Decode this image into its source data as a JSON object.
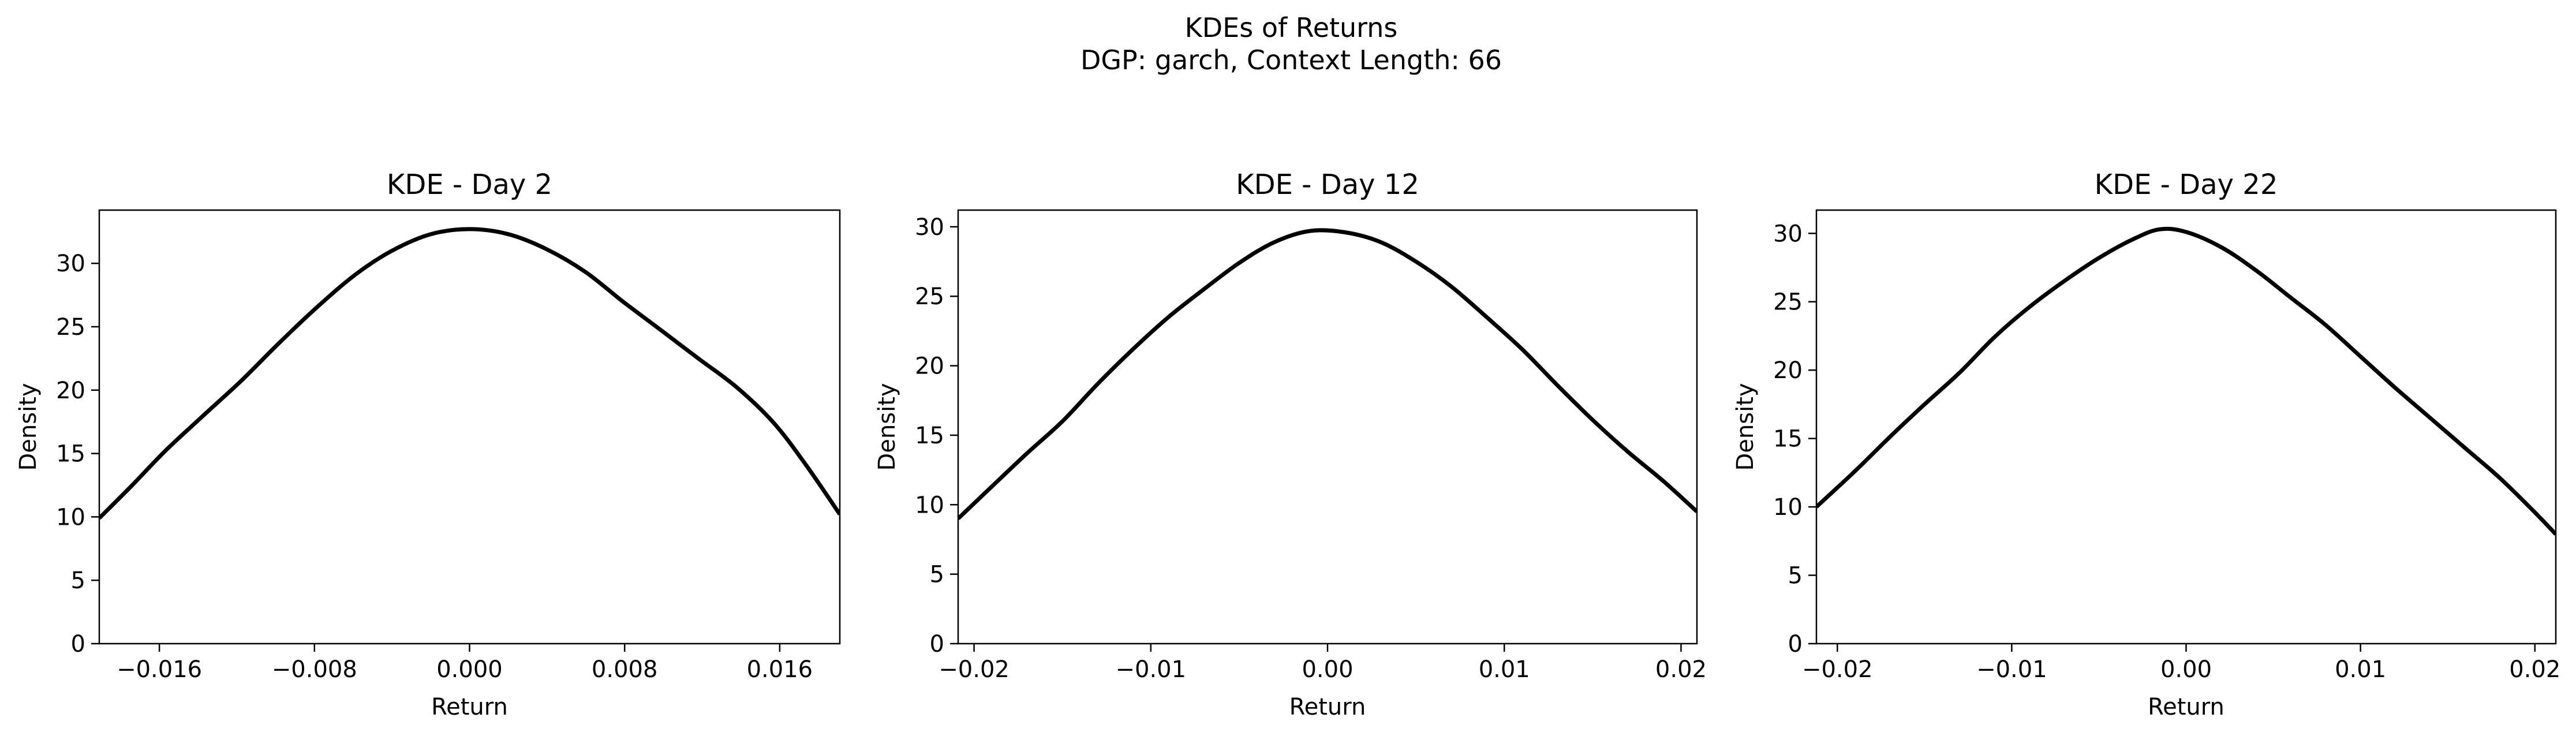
{
  "figure": {
    "title_line1": "KDEs of Returns",
    "title_line2": "DGP: garch, Context Length: 66"
  },
  "chart_data": [
    {
      "type": "line",
      "title": "KDE - Day 2",
      "xlabel": "Return",
      "ylabel": "Density",
      "xlim": [
        -0.0191,
        0.0191
      ],
      "ylim": [
        0,
        34.2
      ],
      "xticks": [
        -0.016,
        -0.008,
        0.0,
        0.008,
        0.016
      ],
      "xtick_labels": [
        "−0.016",
        "−0.008",
        "0.000",
        "0.008",
        "0.016"
      ],
      "yticks": [
        0,
        5,
        10,
        15,
        20,
        25,
        30
      ],
      "ytick_labels": [
        "0",
        "5",
        "10",
        "15",
        "20",
        "25",
        "30"
      ],
      "line_color": "#000000",
      "grid": false,
      "series": [
        {
          "x": [
            -0.0191,
            -0.0174,
            -0.0157,
            -0.0138,
            -0.0118,
            -0.0099,
            -0.0079,
            -0.0059,
            -0.004,
            -0.002,
            0.0,
            0.002,
            0.004,
            0.006,
            0.0079,
            0.0099,
            0.0118,
            0.0138,
            0.0157,
            0.0174,
            0.0191
          ],
          "y": [
            9.9,
            12.5,
            15.2,
            17.9,
            20.7,
            23.6,
            26.5,
            29.1,
            31.0,
            32.3,
            32.7,
            32.3,
            31.1,
            29.3,
            27.0,
            24.7,
            22.5,
            20.2,
            17.4,
            14.0,
            10.2
          ]
        }
      ]
    },
    {
      "type": "line",
      "title": "KDE - Day 12",
      "xlabel": "Return",
      "ylabel": "Density",
      "xlim": [
        -0.0209,
        0.0209
      ],
      "ylim": [
        0,
        31.2
      ],
      "xticks": [
        -0.02,
        -0.01,
        0.0,
        0.01,
        0.02
      ],
      "xtick_labels": [
        "−0.02",
        "−0.01",
        "0.00",
        "0.01",
        "0.02"
      ],
      "yticks": [
        0,
        5,
        10,
        15,
        20,
        25,
        30
      ],
      "ytick_labels": [
        "0",
        "5",
        "10",
        "15",
        "20",
        "25",
        "30"
      ],
      "line_color": "#000000",
      "grid": false,
      "series": [
        {
          "x": [
            -0.0209,
            -0.019,
            -0.017,
            -0.015,
            -0.013,
            -0.011,
            -0.009,
            -0.007,
            -0.005,
            -0.003,
            -0.001,
            0.001,
            0.003,
            0.005,
            0.007,
            0.009,
            0.011,
            0.013,
            0.015,
            0.017,
            0.019,
            0.0209
          ],
          "y": [
            9.0,
            11.3,
            13.7,
            16.0,
            18.7,
            21.2,
            23.5,
            25.5,
            27.4,
            28.9,
            29.7,
            29.6,
            28.9,
            27.5,
            25.7,
            23.5,
            21.2,
            18.6,
            16.1,
            13.8,
            11.7,
            9.5
          ]
        }
      ]
    },
    {
      "type": "line",
      "title": "KDE - Day 22",
      "xlabel": "Return",
      "ylabel": "Density",
      "xlim": [
        -0.0212,
        0.0212
      ],
      "ylim": [
        0,
        31.7
      ],
      "xticks": [
        -0.02,
        -0.01,
        0.0,
        0.01,
        0.02
      ],
      "xtick_labels": [
        "−0.02",
        "−0.01",
        "0.00",
        "0.01",
        "0.02"
      ],
      "yticks": [
        0,
        5,
        10,
        15,
        20,
        25,
        30
      ],
      "ytick_labels": [
        "0",
        "5",
        "10",
        "15",
        "20",
        "25",
        "30"
      ],
      "line_color": "#000000",
      "grid": false,
      "series": [
        {
          "x": [
            -0.0212,
            -0.019,
            -0.017,
            -0.015,
            -0.013,
            -0.011,
            -0.009,
            -0.007,
            -0.005,
            -0.003,
            -0.0015,
            0.0,
            0.002,
            0.004,
            0.006,
            0.008,
            0.01,
            0.012,
            0.014,
            0.016,
            0.018,
            0.02,
            0.0212
          ],
          "y": [
            10.0,
            12.6,
            15.1,
            17.5,
            19.8,
            22.4,
            24.6,
            26.5,
            28.2,
            29.6,
            30.3,
            30.1,
            29.0,
            27.3,
            25.3,
            23.3,
            21.0,
            18.7,
            16.5,
            14.3,
            12.1,
            9.6,
            8.0
          ]
        }
      ]
    }
  ]
}
